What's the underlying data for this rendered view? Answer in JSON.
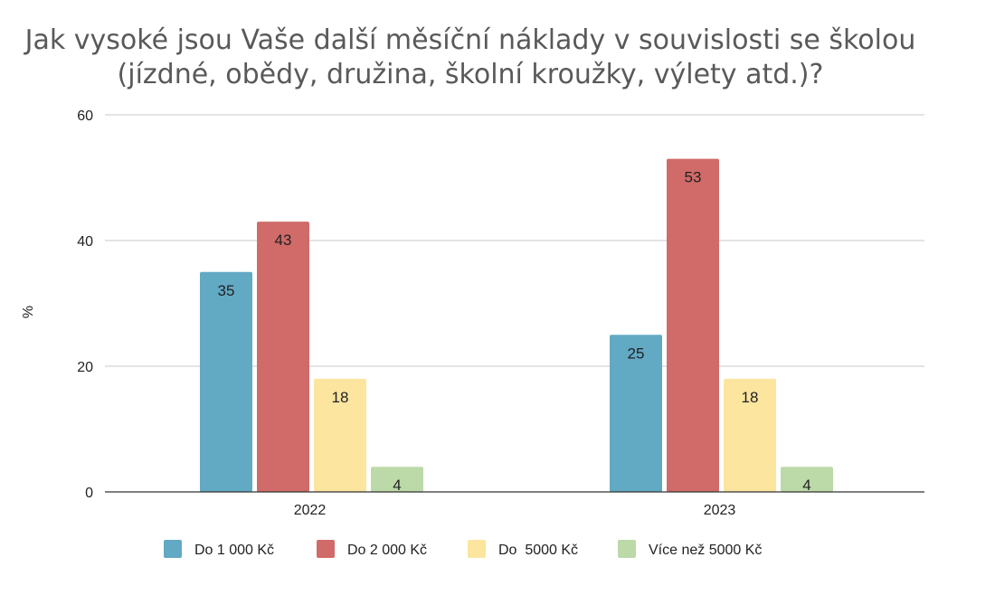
{
  "chart_data": {
    "type": "bar",
    "title_line1": "Jak vysoké jsou Vaše další měsíční náklady v souvislosti se školou",
    "title_line2": "(jízdné, obědy, družina, školní kroužky, výlety atd.)?",
    "xlabel": "",
    "ylabel": "%",
    "ylim": [
      0,
      60
    ],
    "yticks": [
      0,
      20,
      40,
      60
    ],
    "grid": true,
    "legend_position": "bottom",
    "categories": [
      "2022",
      "2023"
    ],
    "series": [
      {
        "name": "Do 1 000 Kč",
        "color": "#62a9c4",
        "values": [
          35,
          25
        ]
      },
      {
        "name": "Do 2 000 Kč",
        "color": "#d06b69",
        "values": [
          43,
          53
        ]
      },
      {
        "name": "Do  5000 Kč",
        "color": "#fbe59f",
        "values": [
          18,
          18
        ]
      },
      {
        "name": "Více než 5000 Kč",
        "color": "#bcd9a8",
        "values": [
          4,
          4
        ]
      }
    ]
  }
}
